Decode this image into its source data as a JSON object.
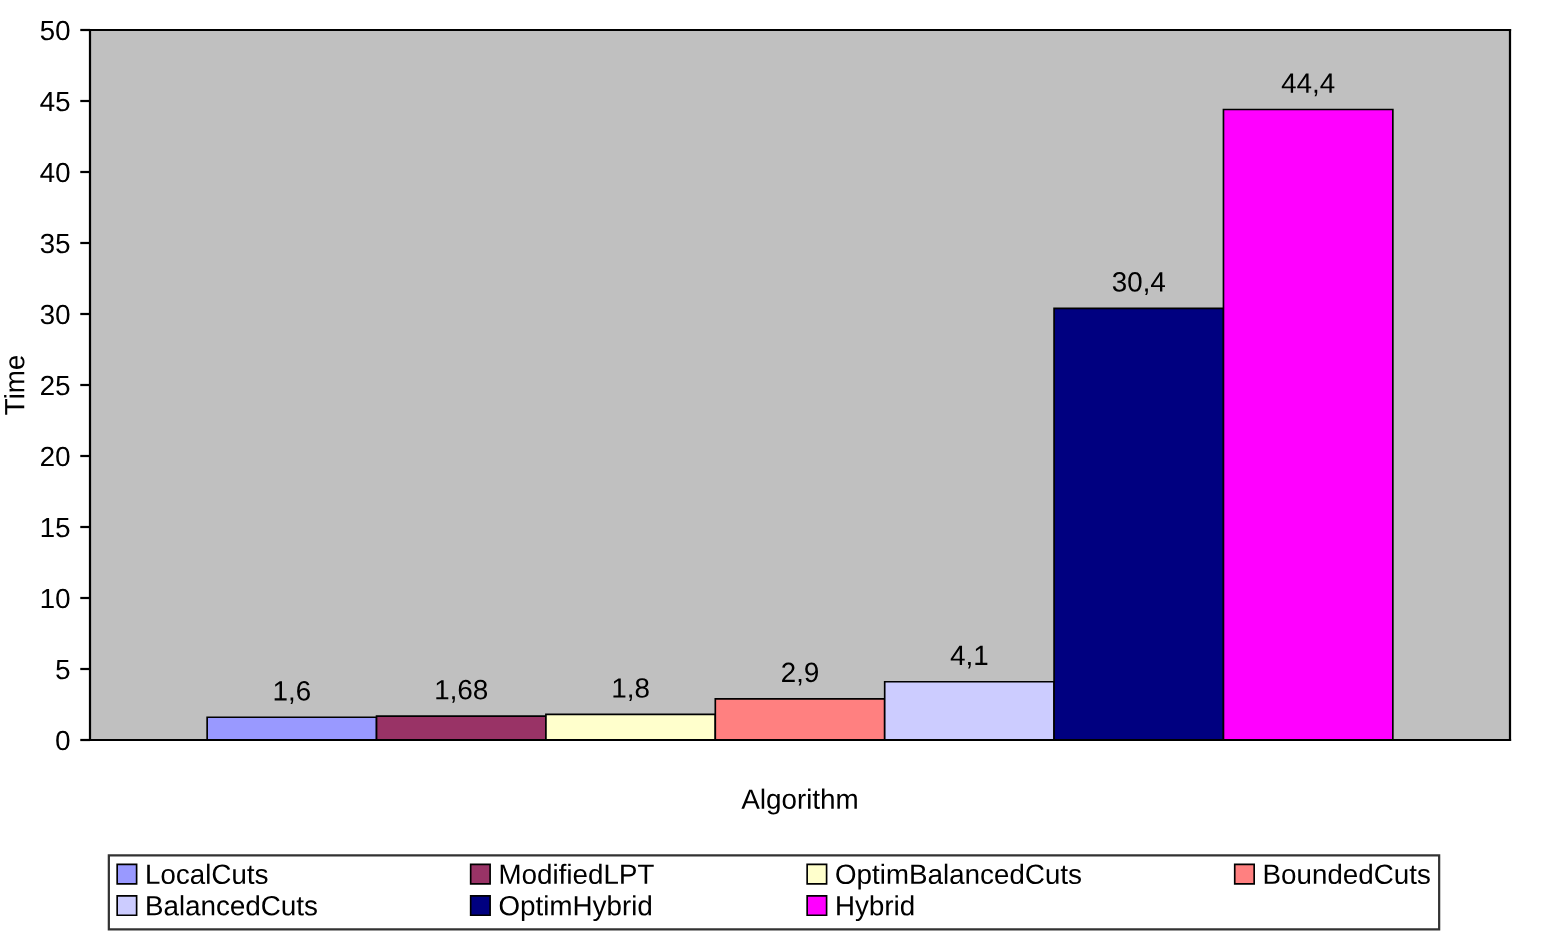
{
  "chart_data": {
    "type": "bar",
    "xlabel": "Algorithm",
    "ylabel": "Time",
    "categories": [
      null
    ],
    "series": [
      {
        "name": "LocalCuts",
        "color": "#9999ff",
        "values": [
          1.6
        ],
        "value_labels": [
          "1,6"
        ]
      },
      {
        "name": "ModifiedLPT",
        "color": "#993366",
        "values": [
          1.68
        ],
        "value_labels": [
          "1,68"
        ]
      },
      {
        "name": "OptimBalancedCuts",
        "color": "#ffffcc",
        "values": [
          1.8
        ],
        "value_labels": [
          "1,8"
        ]
      },
      {
        "name": "BoundedCuts",
        "color": "#ff8080",
        "values": [
          2.9
        ],
        "value_labels": [
          "2,9"
        ]
      },
      {
        "name": "BalancedCuts",
        "color": "#ccccff",
        "values": [
          4.1
        ],
        "value_labels": [
          "4,1"
        ]
      },
      {
        "name": "OptimHybrid",
        "color": "#000080",
        "values": [
          30.4
        ],
        "value_labels": [
          "30,4"
        ]
      },
      {
        "name": "Hybrid",
        "color": "#ff00ff",
        "values": [
          44.4
        ],
        "value_labels": [
          "44,4"
        ]
      }
    ],
    "ylim": [
      0,
      50
    ],
    "yticks": [
      0,
      5,
      10,
      15,
      20,
      25,
      30,
      35,
      40,
      45,
      50
    ],
    "grid": false,
    "legend": "bottom"
  }
}
